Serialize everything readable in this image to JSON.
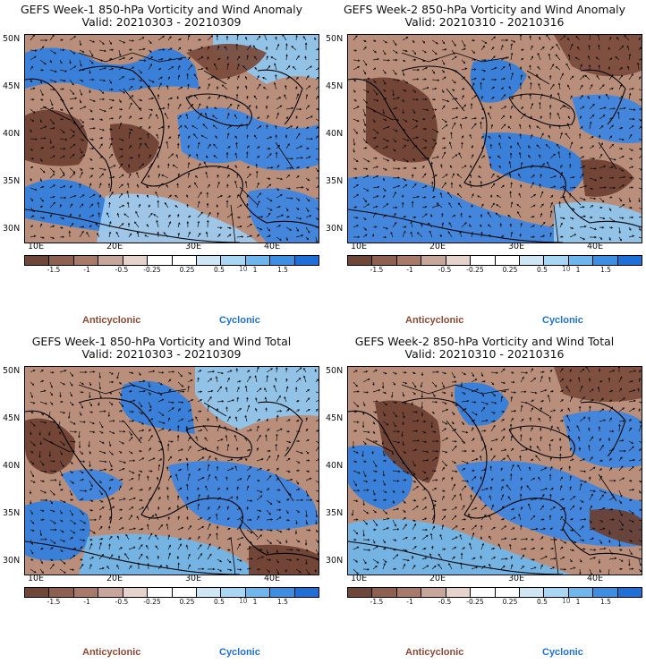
{
  "colors": {
    "anticyclonic": "#8b4a36",
    "cyclonic": "#1f6fd0",
    "colorbar": [
      "#6f4739",
      "#8e6050",
      "#a87a69",
      "#c7a699",
      "#e6d3cb",
      "#ffffff",
      "#ffffff",
      "#cfe6f5",
      "#a9d6f2",
      "#6fb6ec",
      "#3c8fe3",
      "#1e6fd8"
    ]
  },
  "panels": [
    {
      "title": "GEFS Week-1 850-hPa Vorticity and Wind Anomaly",
      "valid": "Valid: 20210303 - 20210309"
    },
    {
      "title": "GEFS Week-2 850-hPa Vorticity and Wind Anomaly",
      "valid": "Valid: 20210310 - 20210316"
    },
    {
      "title": "GEFS Week-1 850-hPa Vorticity and Wind Total",
      "valid": "Valid: 20210303 - 20210309"
    },
    {
      "title": "GEFS Week-2 850-hPa Vorticity and Wind Total",
      "valid": "Valid: 20210310 - 20210316"
    }
  ],
  "lat_labels": [
    "50N",
    "45N",
    "40N",
    "35N",
    "30N"
  ],
  "lon_labels": [
    "10E",
    "20E",
    "30E",
    "40E"
  ],
  "colorbar_labels": [
    "-1.5",
    "-1",
    "-0.5",
    "-0.25",
    "0.25",
    "0.5",
    "1",
    "1.5"
  ],
  "vector_label": "10",
  "legend": {
    "anticyclonic": "Anticyclonic",
    "cyclonic": "Cyclonic"
  }
}
